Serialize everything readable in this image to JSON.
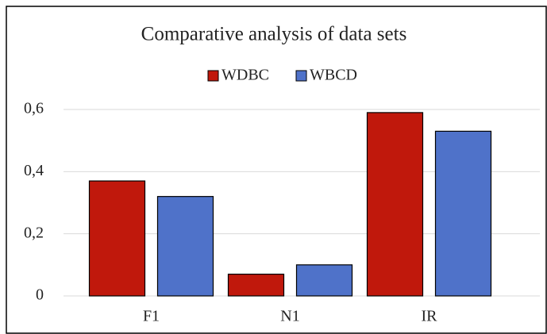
{
  "chart_data": {
    "type": "bar",
    "title": "Comparative analysis  of data sets",
    "categories": [
      "F1",
      "N1",
      "IR"
    ],
    "series": [
      {
        "name": "WDBC",
        "color": "#c0180c",
        "values": [
          0.37,
          0.07,
          0.59
        ]
      },
      {
        "name": "WBCD",
        "color": "#4f72c9",
        "values": [
          0.32,
          0.1,
          0.53
        ]
      }
    ],
    "ylim": [
      0,
      0.6
    ],
    "yticks": [
      0,
      {
        "value": 0.2,
        "label": "0,2"
      },
      {
        "value": 0.4,
        "label": "0,4"
      },
      {
        "value": 0.6,
        "label": "0,6"
      }
    ],
    "grid": true
  }
}
